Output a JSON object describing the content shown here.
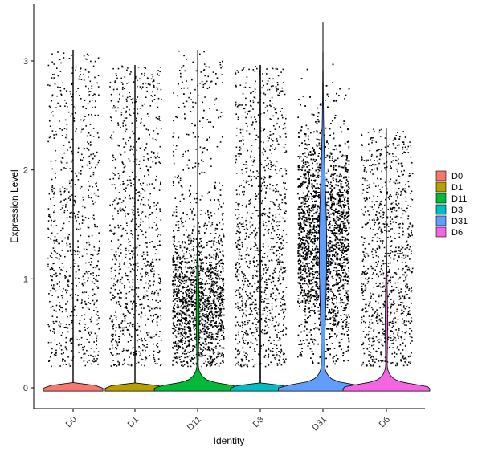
{
  "chart_data": {
    "type": "violin",
    "title": "",
    "xlabel": "Identity",
    "ylabel": "Expression Level",
    "ylim": [
      -0.17,
      3.35
    ],
    "yticks": [
      0,
      1,
      2,
      3
    ],
    "categories": [
      "D0",
      "D1",
      "D11",
      "D3",
      "D31",
      "D6"
    ],
    "colors": {
      "D0": "#F8766D",
      "D1": "#B79F00",
      "D11": "#00BA38",
      "D3": "#00BFC4",
      "D31": "#619CFF",
      "D6": "#F564E3"
    },
    "violins": [
      {
        "name": "D0",
        "max": 3.1,
        "n_points": 750,
        "frac_zero": 0.8
      },
      {
        "name": "D1",
        "max": 2.96,
        "n_points": 900,
        "frac_zero": 0.8
      },
      {
        "name": "D11",
        "max": 3.1,
        "n_points": 2200,
        "frac_zero": 0.55
      },
      {
        "name": "D3",
        "max": 2.96,
        "n_points": 1100,
        "frac_zero": 0.8
      },
      {
        "name": "D31",
        "max": 3.35,
        "n_points": 4800,
        "frac_zero": 0.25
      },
      {
        "name": "D6",
        "max": 2.38,
        "n_points": 950,
        "frac_zero": 0.75
      }
    ],
    "legend": {
      "position": "right",
      "entries": [
        "D0",
        "D1",
        "D11",
        "D3",
        "D31",
        "D6"
      ]
    },
    "grid": false
  }
}
